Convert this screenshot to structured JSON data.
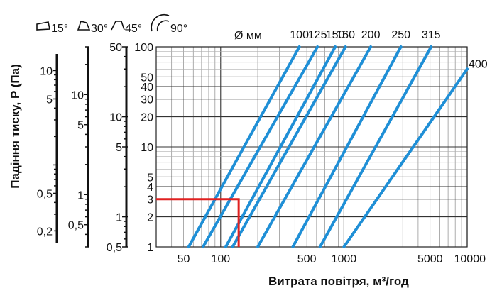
{
  "chart_data": {
    "type": "line",
    "xlabel": "Витрата повітря, м³/год",
    "ylabel": "Падіння тиску, P (Па)",
    "x_scale": "log",
    "y_scale": "log",
    "xlim": [
      30,
      10000
    ],
    "ylim": [
      1,
      100
    ],
    "grid": true,
    "x_ticks": [
      "50",
      "100",
      "500",
      "1000",
      "5000",
      "10000"
    ],
    "x_tick_values": [
      50,
      100,
      500,
      1000,
      5000,
      10000
    ],
    "y_ticks": [
      "1",
      "2",
      "3",
      "4",
      "5",
      "10",
      "20",
      "30",
      "40",
      "50",
      "100"
    ],
    "y_tick_values": [
      1,
      2,
      3,
      4,
      5,
      10,
      20,
      30,
      40,
      50,
      100
    ],
    "diameter_header": "Ø мм",
    "series": [
      {
        "name": "100",
        "points": [
          [
            55,
            1
          ],
          [
            435,
            100
          ]
        ]
      },
      {
        "name": "125",
        "points": [
          [
            72,
            1
          ],
          [
            610,
            100
          ]
        ]
      },
      {
        "name": "150",
        "points": [
          [
            110,
            1
          ],
          [
            850,
            100
          ]
        ]
      },
      {
        "name": "160",
        "points": [
          [
            125,
            1
          ],
          [
            1030,
            100
          ]
        ]
      },
      {
        "name": "200",
        "points": [
          [
            200,
            1
          ],
          [
            1650,
            100
          ]
        ]
      },
      {
        "name": "250",
        "points": [
          [
            385,
            1
          ],
          [
            2900,
            100
          ]
        ]
      },
      {
        "name": "315",
        "points": [
          [
            640,
            1
          ],
          [
            5100,
            100
          ]
        ]
      },
      {
        "name": "400",
        "points": [
          [
            1000,
            1
          ],
          [
            10000,
            60
          ]
        ]
      }
    ],
    "example_path": {
      "flow": 140,
      "pressure": 3,
      "color": "#e02020"
    },
    "line_color": "#1f8fd6",
    "secondary_axes": [
      {
        "name": "15°",
        "ticks": [
          {
            "label": "10",
            "value": 10
          },
          {
            "label": "5",
            "value": 5
          },
          {
            "label": "0,5",
            "value": 0.5
          },
          {
            "label": "0,2",
            "value": 0.2
          }
        ]
      },
      {
        "name": "30°",
        "ticks": [
          {
            "label": "10",
            "value": 10
          },
          {
            "label": "5",
            "value": 5
          },
          {
            "label": "1",
            "value": 1
          },
          {
            "label": "0,5",
            "value": 0.5
          }
        ]
      },
      {
        "name": "45°",
        "ticks": [
          {
            "label": "50",
            "value": 50
          },
          {
            "label": "10",
            "value": 10
          },
          {
            "label": "5",
            "value": 5
          },
          {
            "label": "1",
            "value": 1
          },
          {
            "label": "0,5",
            "value": 0.5
          }
        ]
      }
    ],
    "bend_legend": [
      {
        "label": "15°",
        "icon": "bend-15-icon"
      },
      {
        "label": "30°",
        "icon": "bend-30-icon"
      },
      {
        "label": "45°",
        "icon": "bend-45-icon"
      },
      {
        "label": "90°",
        "icon": "bend-90-icon"
      }
    ]
  }
}
